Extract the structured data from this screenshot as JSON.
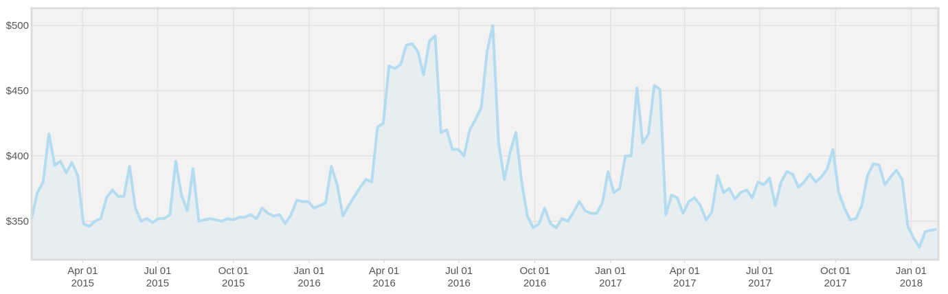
{
  "chart_data": {
    "type": "line",
    "x": [
      "2015-01-29",
      "2015-02-05",
      "2015-02-12",
      "2015-02-19",
      "2015-02-26",
      "2015-03-05",
      "2015-03-12",
      "2015-03-19",
      "2015-03-26",
      "2015-04-02",
      "2015-04-09",
      "2015-04-16",
      "2015-04-23",
      "2015-04-30",
      "2015-05-07",
      "2015-05-14",
      "2015-05-21",
      "2015-05-28",
      "2015-06-04",
      "2015-06-11",
      "2015-06-18",
      "2015-06-25",
      "2015-07-02",
      "2015-07-09",
      "2015-07-16",
      "2015-07-23",
      "2015-07-30",
      "2015-08-06",
      "2015-08-13",
      "2015-08-20",
      "2015-08-27",
      "2015-09-03",
      "2015-09-10",
      "2015-09-17",
      "2015-09-24",
      "2015-10-01",
      "2015-10-08",
      "2015-10-15",
      "2015-10-22",
      "2015-10-29",
      "2015-11-05",
      "2015-11-12",
      "2015-11-19",
      "2015-11-26",
      "2015-12-03",
      "2015-12-10",
      "2015-12-17",
      "2015-12-24",
      "2015-12-31",
      "2016-01-07",
      "2016-01-14",
      "2016-01-21",
      "2016-01-28",
      "2016-02-04",
      "2016-02-11",
      "2016-02-18",
      "2016-02-25",
      "2016-03-03",
      "2016-03-10",
      "2016-03-17",
      "2016-03-24",
      "2016-03-31",
      "2016-04-07",
      "2016-04-14",
      "2016-04-21",
      "2016-04-28",
      "2016-05-05",
      "2016-05-12",
      "2016-05-19",
      "2016-05-26",
      "2016-06-02",
      "2016-06-09",
      "2016-06-16",
      "2016-06-23",
      "2016-06-30",
      "2016-07-07",
      "2016-07-14",
      "2016-07-21",
      "2016-07-28",
      "2016-08-04",
      "2016-08-11",
      "2016-08-18",
      "2016-08-25",
      "2016-09-01",
      "2016-09-08",
      "2016-09-15",
      "2016-09-22",
      "2016-09-29",
      "2016-10-06",
      "2016-10-13",
      "2016-10-20",
      "2016-10-27",
      "2016-11-03",
      "2016-11-10",
      "2016-11-17",
      "2016-11-24",
      "2016-12-01",
      "2016-12-08",
      "2016-12-15",
      "2016-12-22",
      "2016-12-29",
      "2017-01-05",
      "2017-01-12",
      "2017-01-19",
      "2017-01-26",
      "2017-02-02",
      "2017-02-09",
      "2017-02-16",
      "2017-02-23",
      "2017-03-02",
      "2017-03-09",
      "2017-03-16",
      "2017-03-23",
      "2017-03-30",
      "2017-04-06",
      "2017-04-13",
      "2017-04-20",
      "2017-04-27",
      "2017-05-04",
      "2017-05-11",
      "2017-05-18",
      "2017-05-25",
      "2017-06-01",
      "2017-06-08",
      "2017-06-15",
      "2017-06-22",
      "2017-06-29",
      "2017-07-06",
      "2017-07-13",
      "2017-07-20",
      "2017-07-27",
      "2017-08-03",
      "2017-08-10",
      "2017-08-17",
      "2017-08-24",
      "2017-08-31",
      "2017-09-07",
      "2017-09-14",
      "2017-09-21",
      "2017-09-28",
      "2017-10-05",
      "2017-10-12",
      "2017-10-19",
      "2017-10-26",
      "2017-11-02",
      "2017-11-09",
      "2017-11-16",
      "2017-11-23",
      "2017-11-30",
      "2017-12-07",
      "2017-12-14",
      "2017-12-21",
      "2017-12-28",
      "2018-01-04",
      "2018-01-11",
      "2018-01-18",
      "2018-01-25",
      "2018-02-01"
    ],
    "values": [
      352,
      372,
      380,
      417,
      393,
      396,
      387,
      395,
      385,
      348,
      346,
      350,
      352,
      368,
      374,
      369,
      369,
      392,
      360,
      350,
      352,
      349,
      352,
      352,
      355,
      396,
      370,
      358,
      390,
      350,
      351,
      352,
      351,
      350,
      352,
      351,
      353,
      353,
      355,
      352,
      360,
      356,
      354,
      355,
      348,
      355,
      366,
      365,
      365,
      360,
      362,
      364,
      392,
      378,
      354,
      362,
      369,
      376,
      382,
      380,
      422,
      425,
      469,
      467,
      470,
      485,
      486,
      480,
      462,
      488,
      492,
      418,
      420,
      405,
      405,
      400,
      420,
      428,
      437,
      480,
      500,
      410,
      382,
      403,
      418,
      380,
      354,
      345,
      348,
      360,
      348,
      345,
      352,
      350,
      357,
      365,
      358,
      356,
      356,
      364,
      388,
      372,
      375,
      400,
      400,
      452,
      410,
      417,
      454,
      451,
      355,
      370,
      368,
      356,
      365,
      368,
      362,
      351,
      357,
      385,
      372,
      375,
      367,
      372,
      374,
      368,
      380,
      378,
      383,
      362,
      380,
      388,
      386,
      376,
      380,
      386,
      380,
      384,
      390,
      405,
      372,
      360,
      351,
      352,
      362,
      385,
      394,
      393,
      378,
      384,
      389,
      382,
      346,
      337,
      330,
      342,
      343,
      344
    ],
    "color": "#b4dcee",
    "fill_color": "#e6eef2",
    "xlim": [
      "2015-01-29",
      "2018-02-03"
    ],
    "xticks": [
      {
        "value": "2015-04-01",
        "label": "Apr 01 2015"
      },
      {
        "value": "2015-07-01",
        "label": "Jul 01 2015"
      },
      {
        "value": "2015-10-01",
        "label": "Oct 01 2015"
      },
      {
        "value": "2016-01-01",
        "label": "Jan 01 2016"
      },
      {
        "value": "2016-04-01",
        "label": "Apr 01 2016"
      },
      {
        "value": "2016-07-01",
        "label": "Jul 01 2016"
      },
      {
        "value": "2016-10-01",
        "label": "Oct 01 2016"
      },
      {
        "value": "2017-01-01",
        "label": "Jan 01 2017"
      },
      {
        "value": "2017-04-01",
        "label": "Apr 01 2017"
      },
      {
        "value": "2017-07-01",
        "label": "Jul 01 2017"
      },
      {
        "value": "2017-10-01",
        "label": "Oct 01 2017"
      },
      {
        "value": "2018-01-01",
        "label": "Jan 01 2018"
      }
    ],
    "ylim": [
      320.5,
      513.2
    ],
    "yticks": [
      {
        "value": 350,
        "label": "$350"
      },
      {
        "value": 400,
        "label": "$400"
      },
      {
        "value": 450,
        "label": "$450"
      },
      {
        "value": 500,
        "label": "$500"
      }
    ],
    "grid": true
  }
}
